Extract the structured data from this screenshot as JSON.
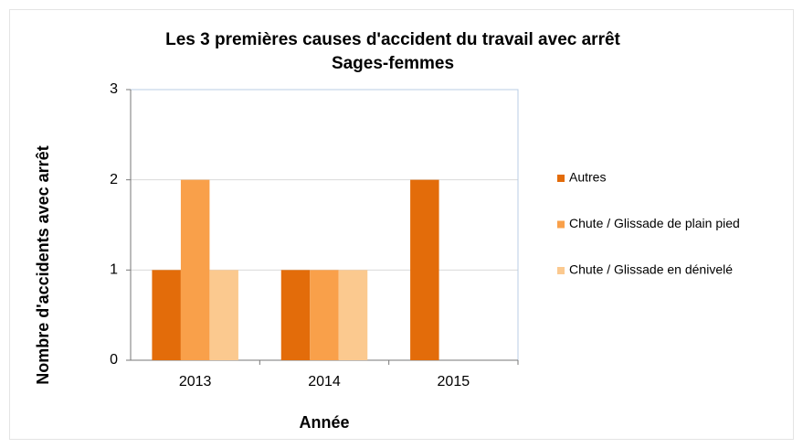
{
  "chart_data": {
    "type": "bar",
    "title": "Les 3 premières causes d'accident du travail avec arrêt",
    "subtitle": "Sages-femmes",
    "x_label": "Année",
    "y_label": "Nombre d'accidents avec arrêt",
    "categories": [
      "2013",
      "2014",
      "2015"
    ],
    "series": [
      {
        "name": "Autres",
        "color": "#e36c0a",
        "values": [
          1,
          1,
          2
        ]
      },
      {
        "name": "Chute / Glissade de plain pied",
        "color": "#f9a04a",
        "values": [
          2,
          1,
          0
        ]
      },
      {
        "name": "Chute / Glissade en dénivelé",
        "color": "#fbc98f",
        "values": [
          1,
          1,
          0
        ]
      }
    ],
    "ylim": [
      0,
      3
    ],
    "yticks": [
      0,
      1,
      2,
      3
    ],
    "grid": true,
    "legend": "right"
  }
}
